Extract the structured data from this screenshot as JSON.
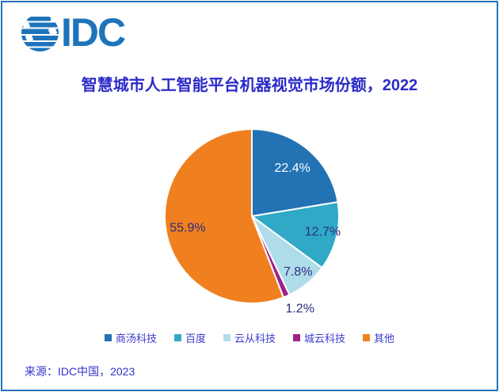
{
  "page": {
    "border_color": "#2673B6",
    "background_color": "#FFFFFF"
  },
  "logo": {
    "text": "IDC",
    "color": "#1E74BB",
    "icon": "idc-striped-globe-icon"
  },
  "title": "智慧城市人工智能平台机器视觉市场份额，2022",
  "source": "来源：IDC中国，2023",
  "chart_data": {
    "type": "pie",
    "title": "智慧城市人工智能平台机器视觉市场份额，2022",
    "start_angle_deg": 0,
    "direction": "clockwise",
    "legend_position": "bottom",
    "slice_border_color": "#FFFFFF",
    "legend_text_color": "#3C3CCE",
    "slices": [
      {
        "label": "商汤科技",
        "value": 22.4,
        "display": "22.4%",
        "color": "#2272B4",
        "label_color": "#FFFFFF",
        "label_radius": 0.72,
        "label_dx": 0
      },
      {
        "label": "百度",
        "value": 12.7,
        "display": "12.7%",
        "color": "#30A9C6",
        "label_color": "#2E2B80",
        "label_radius": 0.78,
        "label_dx": 6
      },
      {
        "label": "云从科技",
        "value": 7.8,
        "display": "7.8%",
        "color": "#AEDDE9",
        "label_color": "#2E2B80",
        "label_radius": 0.83,
        "label_dx": 0
      },
      {
        "label": "城云科技",
        "value": 1.2,
        "display": "1.2%",
        "color": "#A0218C",
        "label_color": "#2E2B80",
        "label_radius": 1.16,
        "label_dx": 10
      },
      {
        "label": "其他",
        "value": 55.9,
        "display": "55.9%",
        "color": "#F0801F",
        "label_color": "#2E2B80",
        "label_radius": 0.75,
        "label_dx": 0
      }
    ]
  }
}
